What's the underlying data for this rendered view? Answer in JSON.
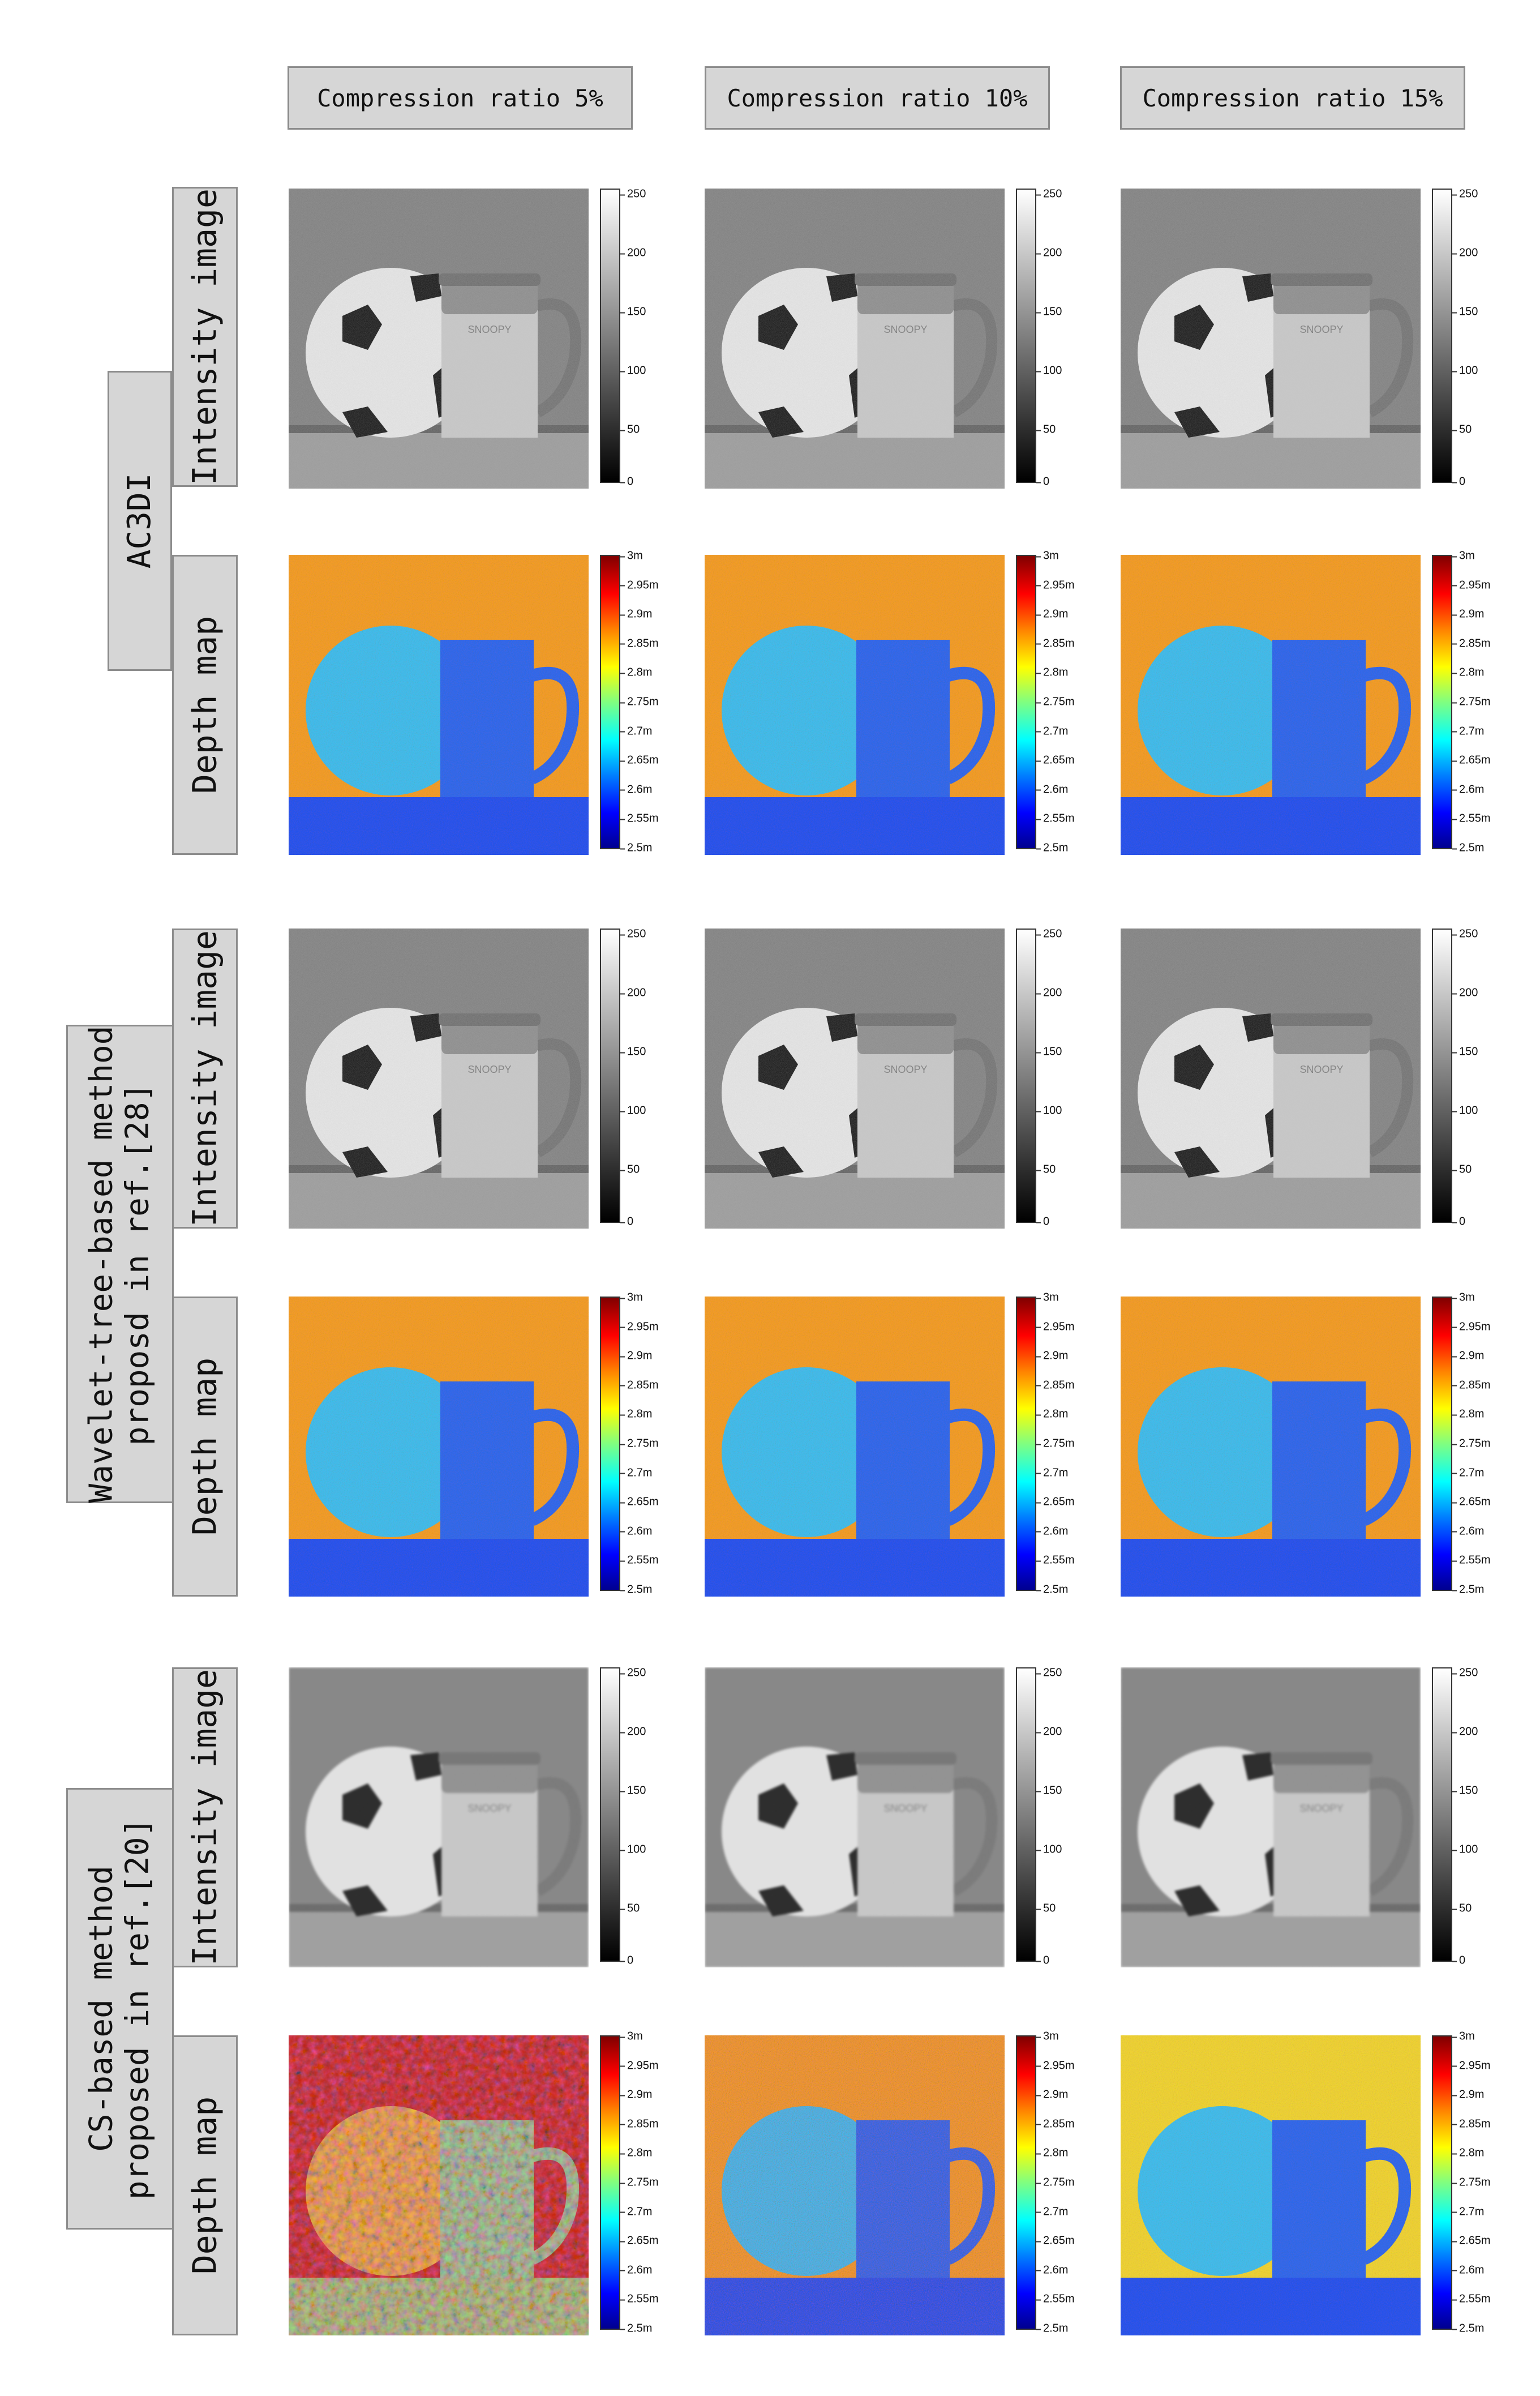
{
  "columns": [
    "Compression ratio 5%",
    "Compression ratio 10%",
    "Compression ratio 15%"
  ],
  "groups": [
    {
      "lines": [
        "AC3DI"
      ]
    },
    {
      "lines": [
        "Wavelet-tree-based method",
        "proposd in ref.[28]"
      ]
    },
    {
      "lines": [
        "CS-based method",
        "proposed in ref.[20]"
      ]
    }
  ],
  "row_labels": {
    "intensity": "Intensity image",
    "depth": "Depth map"
  },
  "intensity_colorbar": [
    "250",
    "200",
    "150",
    "100",
    "50",
    "0"
  ],
  "depth_colorbar": [
    "3m",
    "2.95m",
    "2.9m",
    "2.85m",
    "2.8m",
    "2.75m",
    "2.7m",
    "2.65m",
    "2.6m",
    "2.55m",
    "2.5m"
  ],
  "mug_text": "SNOOPY",
  "colors": {
    "label_box_bg": "#d6d6d6",
    "label_box_border": "#8c8c8c",
    "depth_background": "#f4a21c",
    "depth_ball": "#35c4f0",
    "depth_mug": "#2469f0",
    "depth_floor": "#1a52f2"
  }
}
